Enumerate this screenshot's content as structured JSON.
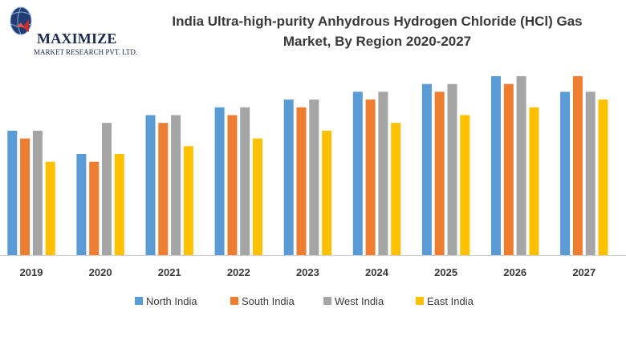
{
  "logo": {
    "name": "MAXIMIZE",
    "tagline": "MARKET RESEARCH PVT. LTD."
  },
  "chart_data": {
    "type": "bar",
    "title_lines": [
      "India Ultra-high-purity  Anhydrous Hydrogen Chloride (HCl) Gas",
      "Market,  By Region 2020-2027"
    ],
    "categories": [
      "2019",
      "2020",
      "2021",
      "2022",
      "2023",
      "2024",
      "2025",
      "2026",
      "2027"
    ],
    "series": [
      {
        "name": "North India",
        "color": "#5b9bd5",
        "values": [
          16,
          13,
          18,
          19,
          20,
          21,
          22,
          23,
          21
        ]
      },
      {
        "name": "South India",
        "color": "#ed7d31",
        "values": [
          15,
          12,
          17,
          18,
          19,
          20,
          21,
          22,
          23
        ]
      },
      {
        "name": "West India",
        "color": "#a5a5a5",
        "values": [
          16,
          17,
          18,
          19,
          20,
          21,
          22,
          23,
          21
        ]
      },
      {
        "name": "East India",
        "color": "#ffc000",
        "values": [
          12,
          13,
          14,
          15,
          16,
          17,
          18,
          19,
          20
        ]
      }
    ],
    "ylim": [
      0,
      23.5
    ],
    "grid": false,
    "legend_position": "bottom"
  }
}
